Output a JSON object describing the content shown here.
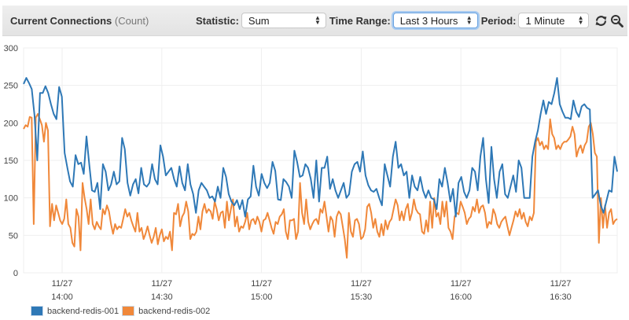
{
  "header": {
    "title": "Current Connections",
    "unit": "(Count)",
    "statistic_label": "Statistic:",
    "statistic_value": "Sum",
    "time_range_label": "Time Range:",
    "time_range_value": "Last 3 Hours",
    "period_label": "Period:",
    "period_value": "1 Minute",
    "icons": [
      "refresh-icon",
      "zoom-out-icon"
    ]
  },
  "colors": {
    "series1": "#2e78b6",
    "series2": "#f0883a",
    "grid": "#efefef",
    "header_bg": "#e6e6e6"
  },
  "chart_data": {
    "type": "line",
    "title": "Current Connections (Count)",
    "xlabel": "",
    "ylabel": "",
    "ylim": [
      0,
      300
    ],
    "yticks": [
      0,
      50,
      100,
      150,
      200,
      250,
      300
    ],
    "xtick_labels": [
      {
        "date": "11/27",
        "time": "14:00"
      },
      {
        "date": "11/27",
        "time": "14:30"
      },
      {
        "date": "11/27",
        "time": "15:00"
      },
      {
        "date": "11/27",
        "time": "15:30"
      },
      {
        "date": "11/27",
        "time": "16:00"
      },
      {
        "date": "11/27",
        "time": "16:30"
      }
    ],
    "x_start": "13:48",
    "x_interval_minutes": 1,
    "grid": true,
    "legend_position": "bottom-left",
    "series": [
      {
        "name": "backend-redis-001",
        "color": "#2e78b6",
        "values": [
          252,
          260,
          253,
          245,
          210,
          150,
          240,
          240,
          249,
          240,
          225,
          212,
          205,
          248,
          235,
          160,
          140,
          122,
          115,
          157,
          145,
          147,
          132,
          182,
          145,
          110,
          108,
          120,
          85,
          145,
          135,
          110,
          118,
          135,
          118,
          122,
          180,
          165,
          120,
          103,
          118,
          125,
          106,
          140,
          118,
          115,
          120,
          145,
          125,
          118,
          170,
          155,
          130,
          135,
          140,
          125,
          115,
          142,
          120,
          110,
          145,
          118,
          105,
          80,
          110,
          120,
          115,
          110,
          100,
          102,
          95,
          115,
          100,
          140,
          128,
          105,
          95,
          90,
          97,
          85,
          97,
          75,
          98,
          102,
          143,
          115,
          103,
          132,
          120,
          113,
          120,
          148,
          136,
          98,
          97,
          125,
          121,
          115,
          100,
          163,
          148,
          128,
          130,
          145,
          140,
          125,
          100,
          150,
          95,
          140,
          140,
          155,
          112,
          125,
          110,
          100,
          110,
          120,
          100,
          105,
          135,
          145,
          148,
          135,
          162,
          130,
          117,
          110,
          108,
          112,
          100,
          90,
          145,
          130,
          115,
          155,
          175,
          140,
          145,
          130,
          135,
          100,
          130,
          115,
          110,
          128,
          110,
          100,
          110,
          100,
          98,
          85,
          125,
          115,
          140,
          120,
          95,
          112,
          75,
          120,
          128,
          108,
          100,
          110,
          140,
          135,
          110,
          155,
          180,
          125,
          93,
          168,
          125,
          100,
          135,
          145,
          105,
          100,
          115,
          130,
          108,
          150,
          140,
          100,
          100,
          100,
          155,
          175,
          190,
          212,
          230,
          212,
          228,
          225,
          240,
          260,
          225,
          215,
          207,
          207,
          205,
          230,
          215,
          208,
          222,
          225,
          220,
          218,
          100,
          105,
          110,
          90,
          80,
          95,
          110,
          108,
          155,
          135
        ]
      },
      {
        "name": "backend-redis-002",
        "color": "#f0883a",
        "values": [
          192,
          197,
          195,
          208,
          207,
          65,
          207,
          212,
          205,
          197,
          175,
          200,
          190,
          62,
          92,
          70,
          90,
          80,
          70,
          65,
          72,
          98,
          65,
          60,
          40,
          35,
          85,
          75,
          30,
          120,
          100,
          85,
          65,
          98,
          65,
          58,
          68,
          62,
          58,
          85,
          78,
          90,
          82,
          65,
          52,
          65,
          58,
          62,
          60,
          72,
          85,
          75,
          80,
          70,
          62,
          55,
          80,
          55,
          60,
          45,
          52,
          62,
          50,
          40,
          48,
          60,
          38,
          50,
          58,
          42,
          48,
          45,
          55,
          30,
          80,
          78,
          92,
          62,
          75,
          80,
          95,
          82,
          45,
          52,
          50,
          55,
          75,
          58,
          82,
          92,
          80,
          85,
          82,
          72,
          95,
          85,
          70,
          80,
          82,
          60,
          95,
          70,
          85,
          98,
          62,
          75,
          55,
          62,
          60,
          68,
          80,
          58,
          70,
          72,
          65,
          75,
          68,
          55,
          70,
          72,
          80,
          70,
          60,
          52,
          68,
          65,
          75,
          78,
          85,
          55,
          45,
          70,
          70,
          72,
          45,
          55,
          120,
          80,
          65,
          98,
          68,
          58,
          65,
          70,
          72,
          65,
          85,
          80,
          95,
          75,
          55,
          75,
          70,
          48,
          75,
          82,
          78,
          62,
          45,
          20,
          80,
          55,
          48,
          70,
          72,
          65,
          45,
          48,
          58,
          88,
          92,
          80,
          60,
          72,
          55,
          48,
          65,
          50,
          70,
          58,
          68,
          72,
          85,
          98,
          90,
          70,
          82,
          70,
          85,
          92,
          70,
          80,
          98,
          85,
          80,
          78,
          55,
          52,
          70,
          55,
          95,
          60,
          100,
          75,
          80,
          65,
          95,
          75,
          95,
          60,
          55,
          45,
          75,
          80,
          78,
          95,
          88,
          80,
          65,
          72,
          75,
          88,
          82,
          98,
          80,
          88,
          90,
          80,
          60,
          68,
          65,
          85,
          78,
          65,
          60,
          68,
          72,
          75,
          62,
          50,
          60,
          70,
          82,
          75,
          85,
          72,
          80,
          68,
          62,
          75,
          70,
          80,
          175,
          180,
          170,
          175,
          165,
          170,
          165,
          205,
          185,
          180,
          165,
          170,
          165,
          172,
          175,
          175,
          178,
          182,
          195,
          185,
          155,
          165,
          170,
          160,
          170,
          175,
          195,
          200,
          185,
          160,
          155,
          40,
          100,
          60,
          90,
          60,
          80,
          85,
          65,
          70,
          72
        ]
      }
    ]
  },
  "legend": {
    "items": [
      {
        "label": "backend-redis-001",
        "color": "#2e78b6"
      },
      {
        "label": "backend-redis-002",
        "color": "#f0883a"
      }
    ]
  }
}
